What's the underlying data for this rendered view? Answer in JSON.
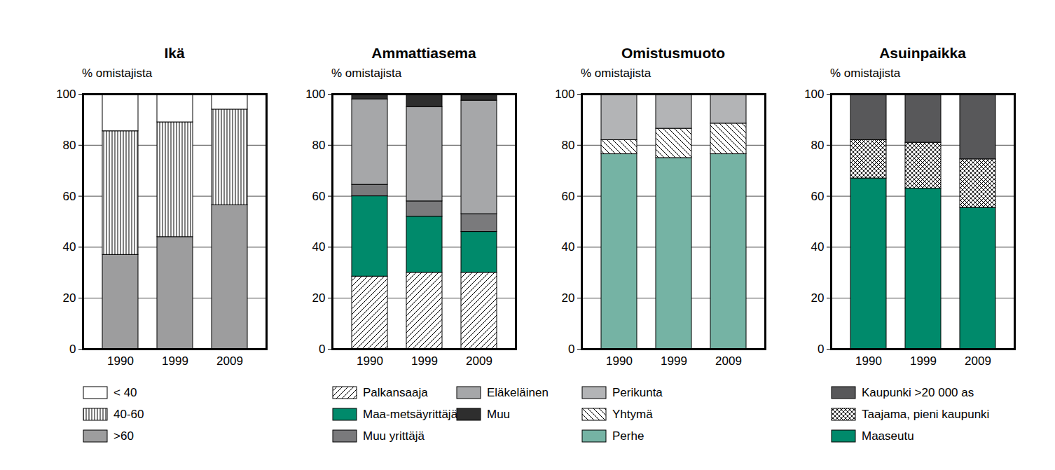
{
  "chart_data": [
    {
      "type": "bar",
      "title": "Ikä",
      "y_label": "% omistajista",
      "stacked": true,
      "grid": true,
      "legend": "bottom",
      "categories": [
        "1990",
        "1999",
        "2009"
      ],
      "series": [
        {
          "name": ">60",
          "color": "#9d9d9e",
          "values": [
            37,
            44,
            56.5
          ]
        },
        {
          "name": "40-60",
          "color": "#ffffff",
          "values": [
            48.5,
            45,
            37.5
          ]
        },
        {
          "name": "< 40",
          "color": "#ffffff",
          "values": [
            14.5,
            11,
            6
          ]
        }
      ],
      "ylim": [
        0,
        100
      ],
      "yticks": [
        0,
        20,
        40,
        60,
        80,
        100
      ]
    },
    {
      "type": "bar",
      "title": "Ammattiasema",
      "y_label": "% omistajista",
      "stacked": true,
      "grid": true,
      "legend": "bottom",
      "categories": [
        "1990",
        "1999",
        "2009"
      ],
      "series": [
        {
          "name": "Palkansaaja",
          "color": "#ffffff",
          "values": [
            28.5,
            30,
            30
          ]
        },
        {
          "name": "Maa-metsäyrittäjä",
          "color": "#008a6b",
          "values": [
            31.5,
            22,
            16
          ]
        },
        {
          "name": "Muu yrittäjä",
          "color": "#7a7a7c",
          "values": [
            4.5,
            6,
            7
          ]
        },
        {
          "name": "Eläkeläinen",
          "color": "#a6a7a9",
          "values": [
            33.5,
            37,
            44.5
          ]
        },
        {
          "name": "Muu",
          "color": "#2e2e2e",
          "values": [
            2,
            5,
            2.5
          ]
        }
      ],
      "ylim": [
        0,
        100
      ],
      "yticks": [
        0,
        20,
        40,
        60,
        80,
        100
      ]
    },
    {
      "type": "bar",
      "title": "Omistusmuoto",
      "y_label": "% omistajista",
      "stacked": true,
      "grid": true,
      "legend": "bottom",
      "categories": [
        "1990",
        "1999",
        "2009"
      ],
      "series": [
        {
          "name": "Perhe",
          "color": "#75b3a4",
          "values": [
            76.5,
            75,
            76.5
          ]
        },
        {
          "name": "Yhtymä",
          "color": "#ffffff",
          "values": [
            5.5,
            11.5,
            12
          ]
        },
        {
          "name": "Perikunta",
          "color": "#b3b4b6",
          "values": [
            18,
            13.5,
            11.5
          ]
        }
      ],
      "ylim": [
        0,
        100
      ],
      "yticks": [
        0,
        20,
        40,
        60,
        80,
        100
      ]
    },
    {
      "type": "bar",
      "title": "Asuinpaikka",
      "y_label": "% omistajista",
      "stacked": true,
      "grid": true,
      "legend": "bottom",
      "categories": [
        "1990",
        "1999",
        "2009"
      ],
      "series": [
        {
          "name": "Maaseutu",
          "color": "#008a6b",
          "values": [
            67,
            63,
            55.5
          ]
        },
        {
          "name": "Taajama, pieni kaupunki",
          "color": "#ffffff",
          "values": [
            15,
            18,
            19
          ]
        },
        {
          "name": "Kaupunki >20 000 as",
          "color": "#58585a",
          "values": [
            18,
            19,
            25.5
          ]
        }
      ],
      "ylim": [
        0,
        100
      ],
      "yticks": [
        0,
        20,
        40,
        60,
        80,
        100
      ]
    }
  ]
}
